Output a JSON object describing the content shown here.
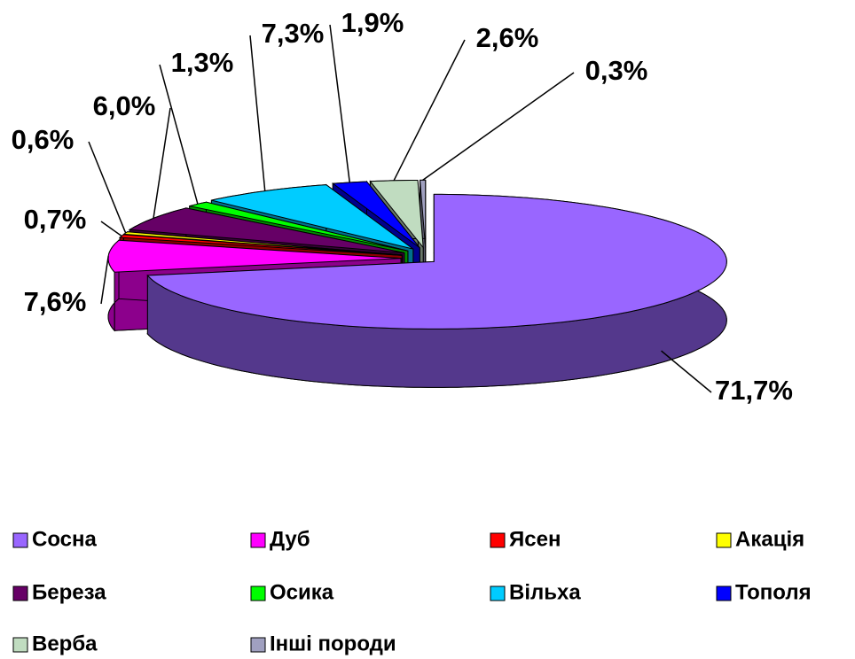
{
  "chart_data": {
    "type": "pie",
    "categories": [
      "Сосна",
      "Дуб",
      "Ясен",
      "Акація",
      "Береза",
      "Осика",
      "Вільха",
      "Тополя",
      "Верба",
      "Інші породи"
    ],
    "values": [
      71.7,
      7.6,
      0.7,
      0.6,
      6.0,
      1.3,
      7.3,
      1.9,
      2.6,
      0.3
    ],
    "value_labels": [
      "71,7%",
      "7,6%",
      "0,7%",
      "0,6%",
      "6,0%",
      "1,3%",
      "7,3%",
      "1,9%",
      "2,6%",
      "0,3%"
    ],
    "colors": [
      "#9966ff",
      "#ff00ff",
      "#ff0000",
      "#ffff00",
      "#660066",
      "#00ff00",
      "#00ccff",
      "#0000ff",
      "#c0dcc0",
      "#a0a0c0"
    ],
    "legend": "bottom"
  }
}
